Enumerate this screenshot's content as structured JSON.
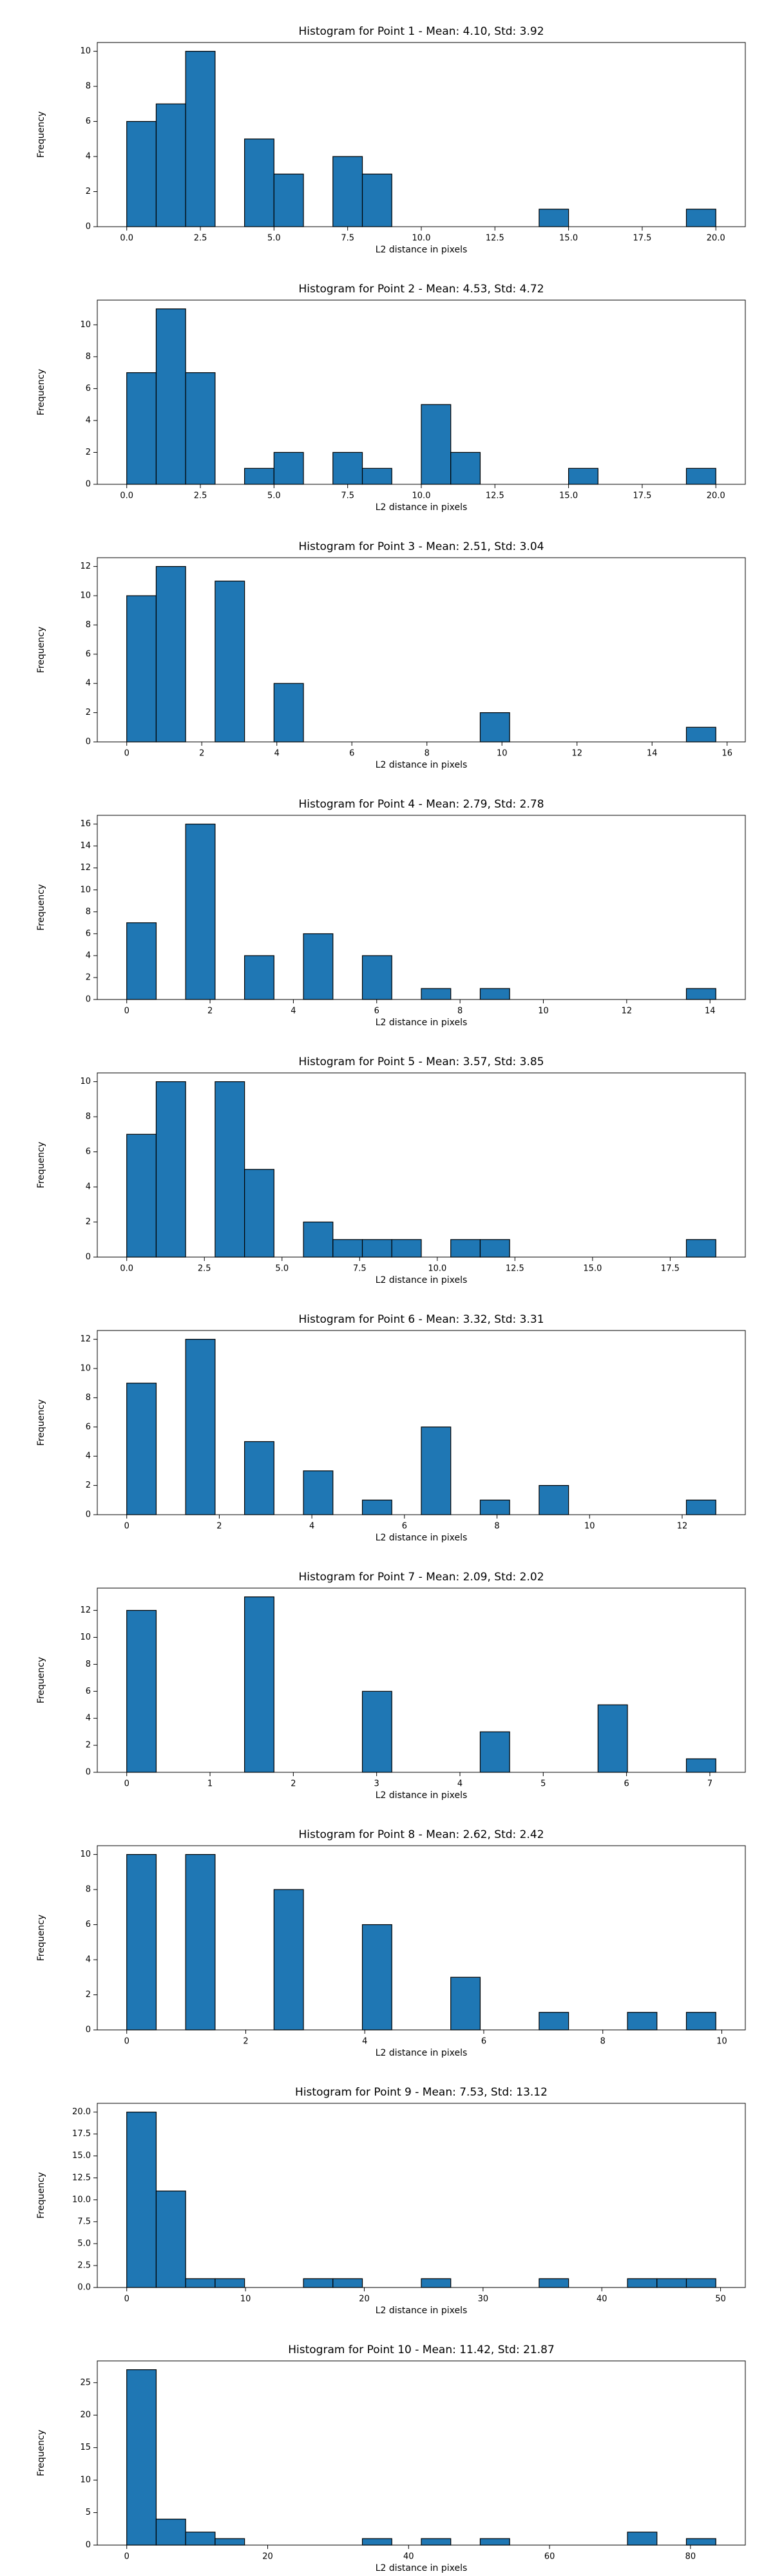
{
  "chart_data": [
    {
      "type": "histogram",
      "title": "Histogram for Point 1 - Mean: 4.10, Std: 3.92",
      "xlabel": "L2 distance in pixels",
      "ylabel": "Frequency",
      "bins": [
        0,
        1,
        2,
        3,
        4,
        5,
        6,
        7,
        8,
        9,
        10,
        11,
        12,
        13,
        14,
        15,
        16,
        17,
        18,
        19,
        20
      ],
      "counts": [
        6,
        7,
        10,
        0,
        5,
        3,
        0,
        4,
        3,
        0,
        0,
        0,
        0,
        0,
        1,
        0,
        0,
        0,
        0,
        1
      ],
      "color": "#1f77b4",
      "edgecolor": "#000000",
      "xlim": [
        -1,
        21
      ],
      "ylim": [
        0,
        10.5
      ],
      "xticks": [
        {
          "value": 0,
          "label": "0.0"
        },
        {
          "value": 2.5,
          "label": "2.5"
        },
        {
          "value": 5,
          "label": "5.0"
        },
        {
          "value": 7.5,
          "label": "7.5"
        },
        {
          "value": 10,
          "label": "10.0"
        },
        {
          "value": 12.5,
          "label": "12.5"
        },
        {
          "value": 15,
          "label": "15.0"
        },
        {
          "value": 17.5,
          "label": "17.5"
        },
        {
          "value": 20,
          "label": "20.0"
        }
      ],
      "yticks": [
        0,
        2,
        4,
        6,
        8,
        10
      ]
    },
    {
      "type": "histogram",
      "title": "Histogram for Point 2 - Mean: 4.53, Std: 4.72",
      "xlabel": "L2 distance in pixels",
      "ylabel": "Frequency",
      "bins": [
        0,
        1,
        2,
        3,
        4,
        5,
        6,
        7,
        8,
        9,
        10,
        11,
        12,
        13,
        14,
        15,
        16,
        17,
        18,
        19,
        20
      ],
      "counts": [
        7,
        11,
        7,
        0,
        1,
        2,
        0,
        2,
        1,
        0,
        5,
        2,
        0,
        0,
        0,
        1,
        0,
        0,
        0,
        1
      ],
      "color": "#1f77b4",
      "edgecolor": "#000000",
      "xlim": [
        -1,
        21
      ],
      "ylim": [
        0,
        11.55
      ],
      "xticks": [
        {
          "value": 0,
          "label": "0.0"
        },
        {
          "value": 2.5,
          "label": "2.5"
        },
        {
          "value": 5,
          "label": "5.0"
        },
        {
          "value": 7.5,
          "label": "7.5"
        },
        {
          "value": 10,
          "label": "10.0"
        },
        {
          "value": 12.5,
          "label": "12.5"
        },
        {
          "value": 15,
          "label": "15.0"
        },
        {
          "value": 17.5,
          "label": "17.5"
        },
        {
          "value": 20,
          "label": "20.0"
        }
      ],
      "yticks": [
        0,
        2,
        4,
        6,
        8,
        10
      ]
    },
    {
      "type": "histogram",
      "title": "Histogram for Point 3 - Mean: 2.51, Std: 3.04",
      "xlabel": "L2 distance in pixels",
      "ylabel": "Frequency",
      "bins": [
        0,
        0.785,
        1.57,
        2.355,
        3.14,
        3.925,
        4.71,
        5.495,
        6.28,
        7.065,
        7.85,
        8.635,
        9.42,
        10.205,
        10.99,
        11.775,
        12.56,
        13.345,
        14.13,
        14.915,
        15.7
      ],
      "counts": [
        10,
        12,
        0,
        11,
        0,
        4,
        0,
        0,
        0,
        0,
        0,
        0,
        2,
        0,
        0,
        0,
        0,
        0,
        0,
        1
      ],
      "color": "#1f77b4",
      "edgecolor": "#000000",
      "xlim": [
        -0.785,
        16.485
      ],
      "ylim": [
        0,
        12.6
      ],
      "xticks": [
        0,
        2,
        4,
        6,
        8,
        10,
        12,
        14,
        16
      ],
      "yticks": [
        0,
        2,
        4,
        6,
        8,
        10,
        12
      ]
    },
    {
      "type": "histogram",
      "title": "Histogram for Point 4 - Mean: 2.79, Std: 2.78",
      "xlabel": "L2 distance in pixels",
      "ylabel": "Frequency",
      "bins": [
        0,
        0.707,
        1.414,
        2.121,
        2.828,
        3.535,
        4.242,
        4.949,
        5.656,
        6.363,
        7.07,
        7.777,
        8.484,
        9.191,
        9.898,
        10.605,
        11.312,
        12.019,
        12.726,
        13.433,
        14.14
      ],
      "counts": [
        7,
        0,
        16,
        0,
        4,
        0,
        6,
        0,
        4,
        0,
        1,
        0,
        1,
        0,
        0,
        0,
        0,
        0,
        0,
        1
      ],
      "color": "#1f77b4",
      "edgecolor": "#000000",
      "xlim": [
        -0.707,
        14.847
      ],
      "ylim": [
        0,
        16.8
      ],
      "xticks": [
        0,
        2,
        4,
        6,
        8,
        10,
        12,
        14
      ],
      "yticks": [
        0,
        2,
        4,
        6,
        8,
        10,
        12,
        14,
        16
      ]
    },
    {
      "type": "histogram",
      "title": "Histogram for Point 5 - Mean: 3.57, Std: 3.85",
      "xlabel": "L2 distance in pixels",
      "ylabel": "Frequency",
      "bins": [
        0,
        0.9485,
        1.897,
        2.8455,
        3.794,
        4.7425,
        5.691,
        6.6395,
        7.588,
        8.5365,
        9.485,
        10.4335,
        11.382,
        12.3305,
        13.279,
        14.2275,
        15.176,
        16.1245,
        17.073,
        18.0215,
        18.97
      ],
      "counts": [
        7,
        10,
        0,
        10,
        5,
        0,
        2,
        1,
        1,
        1,
        0,
        1,
        1,
        0,
        0,
        0,
        0,
        0,
        0,
        1
      ],
      "color": "#1f77b4",
      "edgecolor": "#000000",
      "xlim": [
        -0.9485,
        19.9185
      ],
      "ylim": [
        0,
        10.5
      ],
      "xticks": [
        {
          "value": 0,
          "label": "0.0"
        },
        {
          "value": 2.5,
          "label": "2.5"
        },
        {
          "value": 5,
          "label": "5.0"
        },
        {
          "value": 7.5,
          "label": "7.5"
        },
        {
          "value": 10,
          "label": "10.0"
        },
        {
          "value": 12.5,
          "label": "12.5"
        },
        {
          "value": 15,
          "label": "15.0"
        },
        {
          "value": 17.5,
          "label": "17.5"
        }
      ],
      "yticks": [
        0,
        2,
        4,
        6,
        8,
        10
      ]
    },
    {
      "type": "histogram",
      "title": "Histogram for Point 6 - Mean: 3.32, Std: 3.31",
      "xlabel": "L2 distance in pixels",
      "ylabel": "Frequency",
      "bins": [
        0,
        0.6364,
        1.2728,
        1.9092,
        2.5456,
        3.182,
        3.8184,
        4.4548,
        5.0912,
        5.7276,
        6.364,
        7.0004,
        7.6368,
        8.2732,
        8.9096,
        9.546,
        10.1824,
        10.8188,
        11.4552,
        12.0916,
        12.728
      ],
      "counts": [
        9,
        0,
        12,
        0,
        5,
        0,
        3,
        0,
        1,
        0,
        6,
        0,
        1,
        0,
        2,
        0,
        0,
        0,
        0,
        1
      ],
      "color": "#1f77b4",
      "edgecolor": "#000000",
      "xlim": [
        -0.6364,
        13.3644
      ],
      "ylim": [
        0,
        12.6
      ],
      "xticks": [
        0,
        2,
        4,
        6,
        8,
        10,
        12
      ],
      "yticks": [
        0,
        2,
        4,
        6,
        8,
        10,
        12
      ]
    },
    {
      "type": "histogram",
      "title": "Histogram for Point 7 - Mean: 2.09, Std: 2.02",
      "xlabel": "L2 distance in pixels",
      "ylabel": "Frequency",
      "bins": [
        0,
        0.3536,
        0.7072,
        1.0608,
        1.4144,
        1.768,
        2.1216,
        2.4752,
        2.8288,
        3.1824,
        3.536,
        3.8896,
        4.2432,
        4.5968,
        4.9504,
        5.304,
        5.6576,
        6.0112,
        6.3648,
        6.7184,
        7.072
      ],
      "counts": [
        12,
        0,
        0,
        0,
        13,
        0,
        0,
        0,
        6,
        0,
        0,
        0,
        3,
        0,
        0,
        0,
        5,
        0,
        0,
        1
      ],
      "color": "#1f77b4",
      "edgecolor": "#000000",
      "xlim": [
        -0.3536,
        7.4256
      ],
      "ylim": [
        0,
        13.65
      ],
      "xticks": [
        0,
        1,
        2,
        3,
        4,
        5,
        6,
        7
      ],
      "yticks": [
        0,
        2,
        4,
        6,
        8,
        10,
        12
      ]
    },
    {
      "type": "histogram",
      "title": "Histogram for Point 8 - Mean: 2.62, Std: 2.42",
      "xlabel": "L2 distance in pixels",
      "ylabel": "Frequency",
      "bins": [
        0,
        0.495,
        0.99,
        1.485,
        1.98,
        2.475,
        2.97,
        3.465,
        3.96,
        4.455,
        4.95,
        5.445,
        5.94,
        6.435,
        6.93,
        7.425,
        7.92,
        8.415,
        8.91,
        9.405,
        9.9
      ],
      "counts": [
        10,
        0,
        10,
        0,
        0,
        8,
        0,
        0,
        6,
        0,
        0,
        3,
        0,
        0,
        1,
        0,
        0,
        1,
        0,
        1
      ],
      "color": "#1f77b4",
      "edgecolor": "#000000",
      "xlim": [
        -0.495,
        10.395
      ],
      "ylim": [
        0,
        10.5
      ],
      "xticks": [
        0,
        2,
        4,
        6,
        8,
        10
      ],
      "yticks": [
        0,
        2,
        4,
        6,
        8,
        10
      ]
    },
    {
      "type": "histogram",
      "title": "Histogram for Point 9 - Mean: 7.53, Std: 13.12",
      "xlabel": "L2 distance in pixels",
      "ylabel": "Frequency",
      "bins": [
        0,
        2.48,
        4.96,
        7.44,
        9.92,
        12.4,
        14.88,
        17.36,
        19.84,
        22.32,
        24.8,
        27.28,
        29.76,
        32.24,
        34.72,
        37.2,
        39.68,
        42.16,
        44.64,
        47.12,
        49.6
      ],
      "counts": [
        20,
        11,
        1,
        1,
        0,
        0,
        1,
        1,
        0,
        0,
        1,
        0,
        0,
        0,
        1,
        0,
        0,
        1,
        1,
        1
      ],
      "color": "#1f77b4",
      "edgecolor": "#000000",
      "xlim": [
        -2.48,
        52.08
      ],
      "ylim": [
        0,
        21
      ],
      "xticks": [
        0,
        10,
        20,
        30,
        40,
        50
      ],
      "yticks": [
        {
          "value": 0,
          "label": "0.0"
        },
        {
          "value": 2.5,
          "label": "2.5"
        },
        {
          "value": 5,
          "label": "5.0"
        },
        {
          "value": 7.5,
          "label": "7.5"
        },
        {
          "value": 10,
          "label": "10.0"
        },
        {
          "value": 12.5,
          "label": "12.5"
        },
        {
          "value": 15,
          "label": "15.0"
        },
        {
          "value": 17.5,
          "label": "17.5"
        },
        {
          "value": 20,
          "label": "20.0"
        }
      ]
    },
    {
      "type": "histogram",
      "title": "Histogram for Point 10 - Mean: 11.42, Std: 21.87",
      "xlabel": "L2 distance in pixels",
      "ylabel": "Frequency",
      "bins": [
        0,
        4.18,
        8.36,
        12.54,
        16.72,
        20.9,
        25.08,
        29.26,
        33.44,
        37.62,
        41.8,
        45.98,
        50.16,
        54.34,
        58.52,
        62.7,
        66.88,
        71.06,
        75.24,
        79.42,
        83.6
      ],
      "counts": [
        27,
        4,
        2,
        1,
        0,
        0,
        0,
        0,
        1,
        0,
        1,
        0,
        1,
        0,
        0,
        0,
        0,
        2,
        0,
        1
      ],
      "color": "#1f77b4",
      "edgecolor": "#000000",
      "xlim": [
        -4.18,
        87.78
      ],
      "ylim": [
        0,
        28.35
      ],
      "xticks": [
        0,
        20,
        40,
        60,
        80
      ],
      "yticks": [
        0,
        5,
        10,
        15,
        20,
        25
      ]
    }
  ]
}
